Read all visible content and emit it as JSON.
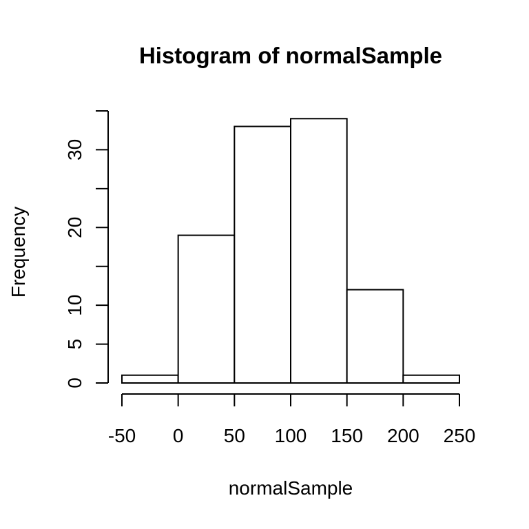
{
  "chart_data": {
    "type": "bar",
    "title": "Histogram of normalSample",
    "xlabel": "normalSample",
    "ylabel": "Frequency",
    "bins": [
      {
        "from": -50,
        "to": 0,
        "count": 1
      },
      {
        "from": 0,
        "to": 50,
        "count": 19
      },
      {
        "from": 50,
        "to": 100,
        "count": 33
      },
      {
        "from": 100,
        "to": 150,
        "count": 34
      },
      {
        "from": 150,
        "to": 200,
        "count": 12
      },
      {
        "from": 200,
        "to": 250,
        "count": 1
      }
    ],
    "xlim": [
      -50,
      250
    ],
    "ylim": [
      0,
      35
    ],
    "x_ticks": [
      -50,
      0,
      50,
      100,
      150,
      200,
      250
    ],
    "x_tick_labels": [
      "-50",
      "0",
      "50",
      "100",
      "150",
      "200",
      "250"
    ],
    "y_ticks": [
      0,
      5,
      10,
      15,
      20,
      25,
      30,
      35
    ],
    "y_tick_labels": [
      "0",
      "5",
      "10",
      "",
      "20",
      "",
      "30",
      ""
    ],
    "bar_fill": "#ffffff",
    "stroke_color": "#000000",
    "grid": false
  }
}
